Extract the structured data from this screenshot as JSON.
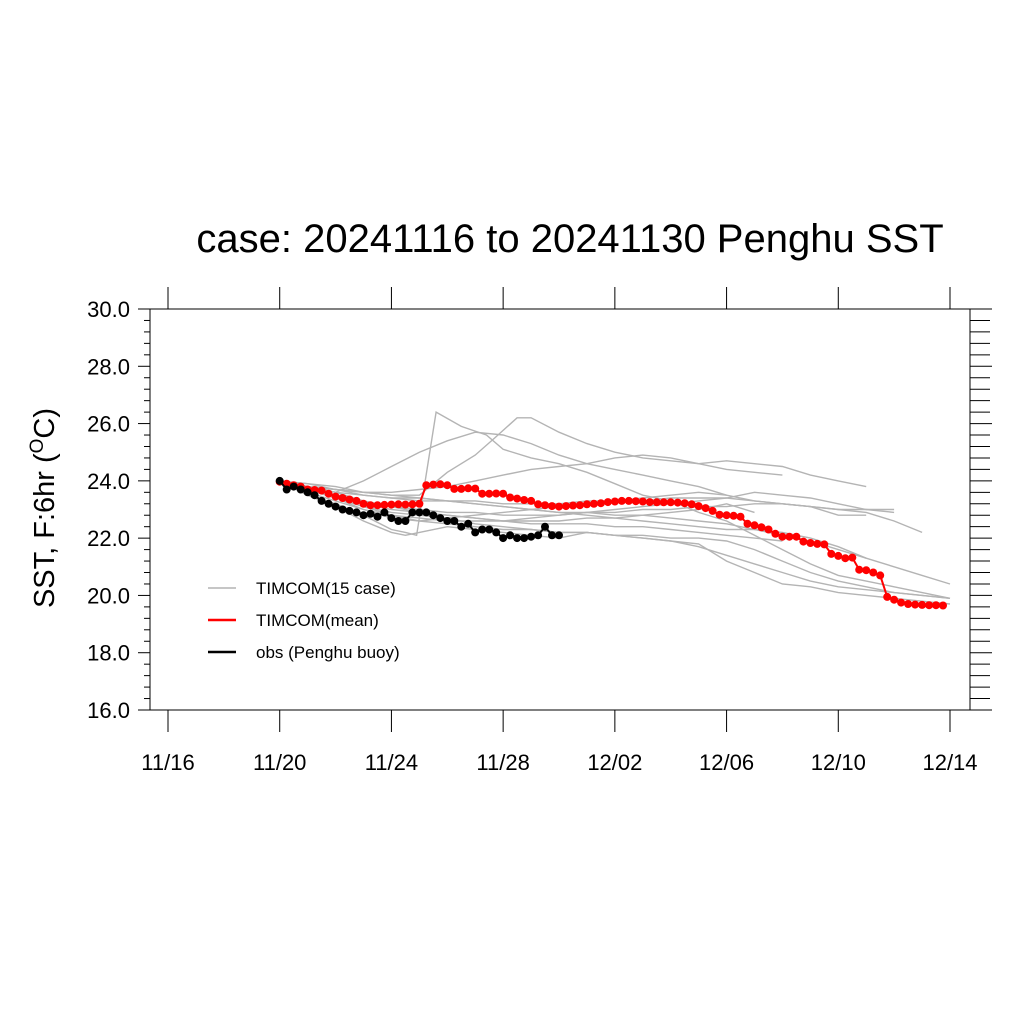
{
  "chart_data": {
    "type": "line",
    "title": "case: 20241116 to 20241130 Penghu SST",
    "ylabel": {
      "main": "SST, F:6hr (",
      "sup": "O",
      "unit": "C)"
    },
    "xlabel": "",
    "x_axis": {
      "units": "days since Nov 16 2024",
      "range": [
        0,
        29
      ],
      "ticks": [
        0,
        4,
        8,
        12,
        16,
        20,
        24,
        28
      ],
      "tick_labels": [
        "11/16",
        "11/20",
        "11/24",
        "11/28",
        "12/02",
        "12/06",
        "12/10",
        "12/14"
      ]
    },
    "y_axis": {
      "range": [
        16.0,
        30.0
      ],
      "ticks": [
        16,
        18,
        20,
        22,
        24,
        26,
        28,
        30
      ],
      "tick_labels": [
        "16.0",
        "18.0",
        "20.0",
        "22.0",
        "24.0",
        "26.0",
        "28.0",
        "30.0"
      ]
    },
    "grid": false,
    "legend_position": "left-bottom",
    "colors": {
      "ensemble": "#b4b4b4",
      "mean": "#ff0000",
      "obs": "#000000"
    },
    "legend": [
      {
        "label": "TIMCOM(15 case)",
        "color": "#b4b4b4"
      },
      {
        "label": "TIMCOM(mean)",
        "color": "#ff0000"
      },
      {
        "label": "obs (Penghu buoy)",
        "color": "#000000"
      }
    ],
    "series": [
      {
        "role": "ensemble",
        "x": [
          4.0,
          5.0,
          6.0,
          7.0,
          8.0,
          8.5,
          9.0,
          10.0,
          11.0,
          12.0,
          13.0,
          14.0,
          15.0,
          16.0,
          17.0,
          18.0,
          19.0,
          20.0,
          21.0,
          22.0,
          23.0,
          24.0,
          25.0,
          26.0,
          27.0,
          28.0
        ],
        "y": [
          24.0,
          23.5,
          23.1,
          22.6,
          22.2,
          22.1,
          22.2,
          22.4,
          22.3,
          22.2,
          22.1,
          22.0,
          22.2,
          22.1,
          22.0,
          21.9,
          21.8,
          21.2,
          20.8,
          20.4,
          20.3,
          20.1,
          20.0,
          19.9,
          19.8,
          19.7
        ]
      },
      {
        "role": "ensemble",
        "x": [
          4.0,
          5.0,
          6.0,
          7.0,
          8.0,
          8.5,
          8.9,
          9.6,
          10.5,
          11.4,
          12.0,
          13.0,
          14.0,
          15.0,
          16.0,
          17.0,
          18.0,
          19.0,
          20.0,
          21.0,
          22.0,
          23.0,
          24.0,
          25.0,
          26.0,
          27.0,
          28.0
        ],
        "y": [
          24.0,
          23.5,
          23.2,
          22.8,
          22.3,
          22.2,
          22.1,
          26.4,
          25.9,
          25.6,
          25.1,
          24.8,
          24.6,
          24.3,
          23.9,
          23.5,
          23.3,
          22.9,
          22.6,
          22.1,
          21.6,
          21.1,
          20.7,
          20.5,
          20.3,
          20.1,
          19.9
        ]
      },
      {
        "role": "ensemble",
        "x": [
          4.0,
          5.0,
          6.0,
          7.0,
          8.0,
          9.0,
          10.0,
          11.0,
          12.0,
          13.0,
          14.0,
          15.0,
          16.0,
          17.0,
          18.0,
          19.0,
          20.0,
          21.0,
          22.0,
          23.0,
          24.0,
          25.0,
          26.0,
          27.0,
          28.0
        ],
        "y": [
          24.0,
          23.7,
          23.4,
          23.1,
          22.9,
          22.8,
          22.7,
          22.5,
          22.4,
          22.3,
          22.2,
          22.2,
          22.1,
          22.1,
          22.0,
          22.0,
          21.9,
          21.6,
          21.2,
          20.8,
          20.5,
          20.3,
          20.1,
          20.0,
          19.9
        ]
      },
      {
        "role": "ensemble",
        "x": [
          4.0,
          5.0,
          6.0,
          7.0,
          8.0,
          9.0,
          10.0,
          11.0,
          12.0,
          13.0,
          14.0,
          15.0,
          16.0,
          17.0,
          18.0,
          19.0,
          20.0,
          21.0,
          22.0,
          23.0,
          24.0,
          25.0,
          26.0,
          27.0,
          28.0
        ],
        "y": [
          24.0,
          23.8,
          23.6,
          23.5,
          23.4,
          23.4,
          23.3,
          23.2,
          23.1,
          23.0,
          22.9,
          22.9,
          22.8,
          22.8,
          22.7,
          22.6,
          22.5,
          22.3,
          22.1,
          21.9,
          21.6,
          21.3,
          21.0,
          20.7,
          20.4
        ]
      },
      {
        "role": "ensemble",
        "x": [
          4.0,
          5.0,
          6.0,
          7.0,
          8.0,
          9.0,
          10.0,
          11.0,
          12.0,
          13.0,
          14.0,
          15.0,
          16.0,
          17.0,
          18.0,
          19.0,
          20.0
        ],
        "y": [
          24.0,
          23.8,
          23.6,
          24.0,
          24.5,
          25.0,
          25.4,
          25.7,
          25.6,
          25.3,
          24.9,
          24.6,
          24.4,
          24.2,
          24.0,
          23.8,
          23.5
        ]
      },
      {
        "role": "ensemble",
        "x": [
          4.0,
          5.0,
          6.0,
          7.0,
          8.0,
          9.0,
          10.0,
          11.0,
          11.7,
          12.5,
          13.0,
          14.0,
          15.0,
          16.0,
          17.0,
          18.0,
          19.0,
          20.0,
          21.0,
          22.0,
          23.0,
          24.0,
          25.0
        ],
        "y": [
          24.0,
          23.9,
          23.7,
          23.6,
          23.5,
          23.5,
          24.3,
          24.9,
          25.5,
          26.2,
          26.2,
          25.7,
          25.3,
          25.0,
          24.8,
          24.7,
          24.6,
          24.7,
          24.6,
          24.5,
          24.2,
          24.0,
          23.8
        ]
      },
      {
        "role": "ensemble",
        "x": [
          4.0,
          5.0,
          6.0,
          7.0,
          8.0,
          9.0,
          10.0,
          11.0,
          12.0,
          13.0,
          14.0,
          15.0,
          16.0,
          17.0,
          18.0,
          19.0,
          20.0,
          21.0,
          22.0,
          23.0,
          24.0,
          25.0
        ],
        "y": [
          24.0,
          23.9,
          23.8,
          23.6,
          23.5,
          23.4,
          23.3,
          23.2,
          23.1,
          23.0,
          22.9,
          22.8,
          22.7,
          22.6,
          22.5,
          22.4,
          22.3,
          22.3,
          22.2,
          22.0,
          21.7,
          21.3
        ]
      },
      {
        "role": "ensemble",
        "x": [
          4.0,
          5.0,
          6.0,
          7.0,
          8.0,
          9.0,
          10.0,
          11.0,
          12.0,
          13.0,
          14.0,
          15.0,
          16.0,
          17.0,
          18.0,
          19.0,
          20.0,
          21.0,
          22.0,
          23.0,
          24.0,
          25.0
        ],
        "y": [
          24.0,
          23.7,
          23.4,
          23.0,
          22.7,
          22.6,
          22.7,
          22.8,
          22.9,
          23.0,
          23.1,
          23.2,
          23.3,
          23.4,
          23.5,
          23.6,
          23.5,
          23.3,
          23.2,
          23.1,
          22.8,
          22.8
        ]
      },
      {
        "role": "ensemble",
        "x": [
          4.0,
          5.0,
          6.0,
          7.0,
          8.0,
          9.0,
          10.0,
          11.0,
          12.0,
          13.0,
          14.0,
          15.0,
          16.0,
          17.0,
          18.0,
          19.0,
          20.0,
          21.0,
          22.0,
          23.0,
          24.0,
          25.0,
          26.0
        ],
        "y": [
          24.0,
          23.6,
          23.3,
          23.0,
          22.8,
          22.7,
          22.6,
          22.6,
          22.6,
          22.7,
          22.8,
          22.9,
          23.0,
          23.1,
          23.2,
          23.3,
          23.4,
          23.6,
          23.5,
          23.4,
          23.2,
          23.0,
          22.9
        ]
      },
      {
        "role": "ensemble",
        "x": [
          4.0,
          5.0,
          6.0,
          7.0,
          8.0,
          9.0,
          10.0,
          11.0,
          12.0,
          13.0,
          14.0,
          15.0,
          16.0,
          17.0,
          18.0,
          19.0,
          20.0,
          21.0,
          22.0,
          23.0,
          24.0,
          25.0,
          26.0,
          27.0
        ],
        "y": [
          24.0,
          23.7,
          23.5,
          23.3,
          23.1,
          23.0,
          22.9,
          22.9,
          22.8,
          22.8,
          22.8,
          22.9,
          22.9,
          23.0,
          23.0,
          23.1,
          23.1,
          23.2,
          23.2,
          23.1,
          23.0,
          22.9,
          22.6,
          22.2
        ]
      },
      {
        "role": "ensemble",
        "x": [
          4.0,
          5.0,
          6.0,
          7.0,
          8.0,
          9.0,
          10.0,
          11.0,
          12.0,
          13.0,
          14.0,
          15.0,
          16.0,
          17.0,
          18.0,
          19.0,
          20.0,
          21.0
        ],
        "y": [
          24.0,
          23.8,
          23.6,
          23.3,
          23.1,
          22.9,
          22.8,
          22.7,
          22.6,
          22.6,
          22.6,
          22.7,
          22.7,
          22.8,
          22.9,
          23.0,
          23.2,
          22.9
        ]
      },
      {
        "role": "ensemble",
        "x": [
          4.0,
          5.0,
          6.0,
          7.0,
          8.0,
          9.0,
          10.0,
          11.0,
          12.0,
          13.0,
          14.0,
          15.0,
          16.0,
          17.0,
          18.0,
          19.0,
          20.0,
          21.0,
          22.0,
          23.0,
          24.0,
          25.0,
          26.0
        ],
        "y": [
          24.0,
          23.8,
          23.7,
          23.5,
          23.4,
          23.3,
          23.3,
          23.3,
          23.2,
          23.2,
          23.2,
          23.3,
          23.3,
          23.3,
          23.4,
          23.4,
          23.4,
          23.3,
          23.2,
          23.1,
          23.0,
          23.0,
          23.0
        ]
      },
      {
        "role": "ensemble",
        "x": [
          4.0,
          5.0,
          6.0,
          7.0,
          8.0,
          9.0,
          10.0,
          11.0,
          12.0,
          13.0,
          14.0,
          15.0,
          16.0,
          17.0,
          18.0,
          19.0,
          20.0,
          21.0,
          22.0
        ],
        "y": [
          24.0,
          23.8,
          23.7,
          23.6,
          23.6,
          23.7,
          23.8,
          24.0,
          24.2,
          24.4,
          24.5,
          24.6,
          24.8,
          24.9,
          24.8,
          24.6,
          24.4,
          24.3,
          24.2
        ]
      },
      {
        "role": "ensemble",
        "x": [
          4.0,
          5.0,
          6.0,
          7.0,
          8.0,
          9.0,
          10.0,
          11.0,
          12.0,
          13.0,
          14.0,
          15.0,
          16.0,
          17.0,
          18.0,
          19.0,
          20.0,
          21.0,
          22.0
        ],
        "y": [
          24.0,
          23.8,
          23.5,
          23.2,
          23.0,
          22.9,
          22.8,
          22.7,
          22.6,
          22.5,
          22.5,
          22.5,
          22.4,
          22.4,
          22.3,
          22.2,
          22.1,
          22.0,
          21.9
        ]
      },
      {
        "role": "ensemble",
        "x": [
          4.0,
          5.0,
          6.0,
          7.0,
          8.0,
          9.0,
          10.0,
          11.0,
          12.0,
          13.0,
          14.0,
          15.0,
          16.0,
          17.0,
          18.0,
          19.0,
          20.0,
          21.0,
          22.0,
          23.0,
          24.0,
          25.0,
          26.0,
          27.0,
          28.0
        ],
        "y": [
          24.0,
          23.7,
          23.4,
          23.1,
          22.8,
          22.6,
          22.5,
          22.4,
          22.3,
          22.3,
          22.2,
          22.2,
          22.1,
          22.0,
          21.9,
          21.7,
          21.4,
          21.1,
          20.8,
          20.5,
          20.3,
          20.2,
          20.1,
          20.0,
          19.9
        ]
      },
      {
        "role": "mean",
        "x": [
          4.0,
          4.25,
          4.5,
          4.75,
          5.0,
          5.25,
          5.5,
          5.75,
          6.0,
          6.25,
          6.5,
          6.75,
          7.0,
          7.25,
          7.5,
          7.75,
          8.0,
          8.25,
          8.5,
          8.75,
          9.0,
          9.25,
          9.5,
          9.75,
          10.0,
          10.25,
          10.5,
          10.75,
          11.0,
          11.25,
          11.5,
          11.75,
          12.0,
          12.25,
          12.5,
          12.75,
          13.0,
          13.25,
          13.5,
          13.75,
          14.0,
          14.25,
          14.5,
          14.75,
          15.0,
          15.25,
          15.5,
          15.75,
          16.0,
          16.25,
          16.5,
          16.75,
          17.0,
          17.25,
          17.5,
          17.75,
          18.0,
          18.25,
          18.5,
          18.75,
          19.0,
          19.25,
          19.5,
          19.75,
          20.0,
          20.25,
          20.5,
          20.75,
          21.0,
          21.25,
          21.5,
          21.75,
          22.0,
          22.25,
          22.5,
          22.75,
          23.0,
          23.25,
          23.5,
          23.75,
          24.0,
          24.25,
          24.5,
          24.75,
          25.0,
          25.25,
          25.5,
          25.75,
          26.0,
          26.25,
          26.5,
          26.75,
          27.0,
          27.25,
          27.5,
          27.75
        ],
        "y": [
          23.97,
          23.9,
          23.85,
          23.8,
          23.7,
          23.68,
          23.66,
          23.55,
          23.45,
          23.4,
          23.35,
          23.3,
          23.2,
          23.15,
          23.15,
          23.16,
          23.17,
          23.18,
          23.17,
          23.18,
          23.2,
          23.85,
          23.87,
          23.88,
          23.85,
          23.72,
          23.72,
          23.74,
          23.73,
          23.55,
          23.55,
          23.56,
          23.55,
          23.42,
          23.38,
          23.33,
          23.3,
          23.18,
          23.15,
          23.12,
          23.1,
          23.12,
          23.14,
          23.15,
          23.18,
          23.2,
          23.22,
          23.26,
          23.28,
          23.3,
          23.3,
          23.29,
          23.28,
          23.26,
          23.25,
          23.25,
          23.25,
          23.24,
          23.22,
          23.18,
          23.12,
          23.05,
          22.95,
          22.82,
          22.8,
          22.78,
          22.75,
          22.5,
          22.45,
          22.38,
          22.3,
          22.15,
          22.05,
          22.05,
          22.05,
          21.88,
          21.83,
          21.8,
          21.78,
          21.45,
          21.38,
          21.3,
          21.32,
          20.9,
          20.88,
          20.8,
          20.7,
          19.95,
          19.85,
          19.75,
          19.7,
          19.68,
          19.67,
          19.66,
          19.66,
          19.65
        ]
      },
      {
        "role": "obs",
        "x": [
          4.0,
          4.25,
          4.5,
          4.75,
          5.0,
          5.25,
          5.5,
          5.75,
          6.0,
          6.25,
          6.5,
          6.75,
          7.0,
          7.25,
          7.5,
          7.75,
          8.0,
          8.25,
          8.5,
          8.75,
          9.0,
          9.25,
          9.5,
          9.75,
          10.0,
          10.25,
          10.5,
          10.75,
          11.0,
          11.25,
          11.5,
          11.75,
          12.0,
          12.25,
          12.5,
          12.75,
          13.0,
          13.25,
          13.5,
          13.75,
          14.0
        ],
        "y": [
          24.0,
          23.7,
          23.8,
          23.7,
          23.6,
          23.5,
          23.3,
          23.2,
          23.1,
          23.0,
          22.95,
          22.9,
          22.8,
          22.85,
          22.75,
          22.9,
          22.7,
          22.6,
          22.6,
          22.9,
          22.9,
          22.9,
          22.8,
          22.7,
          22.6,
          22.6,
          22.4,
          22.5,
          22.2,
          22.3,
          22.3,
          22.2,
          22.0,
          22.1,
          22.0,
          22.0,
          22.05,
          22.1,
          22.4,
          22.1,
          22.1
        ]
      }
    ]
  }
}
